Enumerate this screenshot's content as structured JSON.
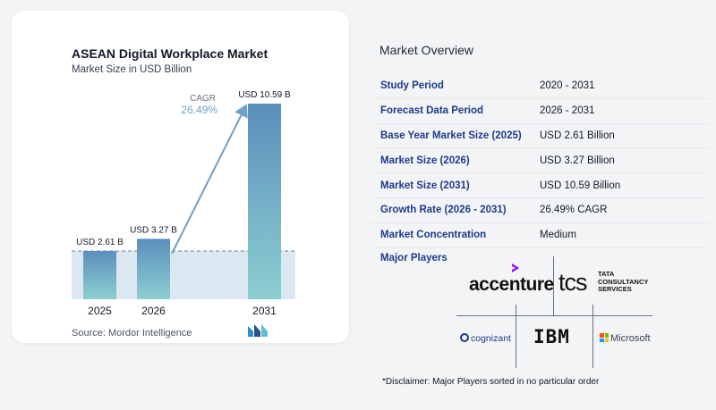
{
  "chart": {
    "title": "ASEAN Digital Workplace Market",
    "subtitle": "Market Size in USD Billion",
    "cagr_label": "CAGR",
    "cagr_value": "26.49%",
    "source": "Source: Mordor Intelligence"
  },
  "chart_data": {
    "type": "bar",
    "title": "ASEAN Digital Workplace Market",
    "subtitle": "Market Size in USD Billion",
    "categories": [
      "2025",
      "2026",
      "2031"
    ],
    "values": [
      2.61,
      3.27,
      10.59
    ],
    "data_labels": [
      "USD 2.61 B",
      "USD 3.27 B",
      "USD 10.59 B"
    ],
    "annotation": "CAGR 26.49%",
    "ylim": [
      0,
      10.59
    ],
    "grid": false,
    "colors": {
      "bar_top": "#5b8fbc",
      "bar_bottom": "#8ccfd1",
      "arrow": "#6f9fc4",
      "band": "#dbe7f1"
    }
  },
  "overview": {
    "title": "Market Overview",
    "rows": [
      {
        "label": "Study Period",
        "value": "2020 - 2031"
      },
      {
        "label": "Forecast Data Period",
        "value": "2026 - 2031"
      },
      {
        "label": "Base Year Market Size (2025)",
        "value": "USD 2.61 Billion"
      },
      {
        "label": "Market Size (2026)",
        "value": "USD 3.27 Billion"
      },
      {
        "label": "Market Size (2031)",
        "value": "USD 10.59 Billion"
      },
      {
        "label": "Growth Rate (2026 - 2031)",
        "value": "26.49% CAGR"
      },
      {
        "label": "Market Concentration",
        "value": "Medium"
      }
    ],
    "players_title": "Major Players",
    "players": [
      "accenture",
      "TATA",
      "CONSULTANCY",
      "SERVICES",
      "cognizant",
      "IBM",
      "Microsoft"
    ],
    "tcs_logo": "tcs",
    "disclaimer": "*Disclaimer: Major Players sorted in no particular order"
  }
}
